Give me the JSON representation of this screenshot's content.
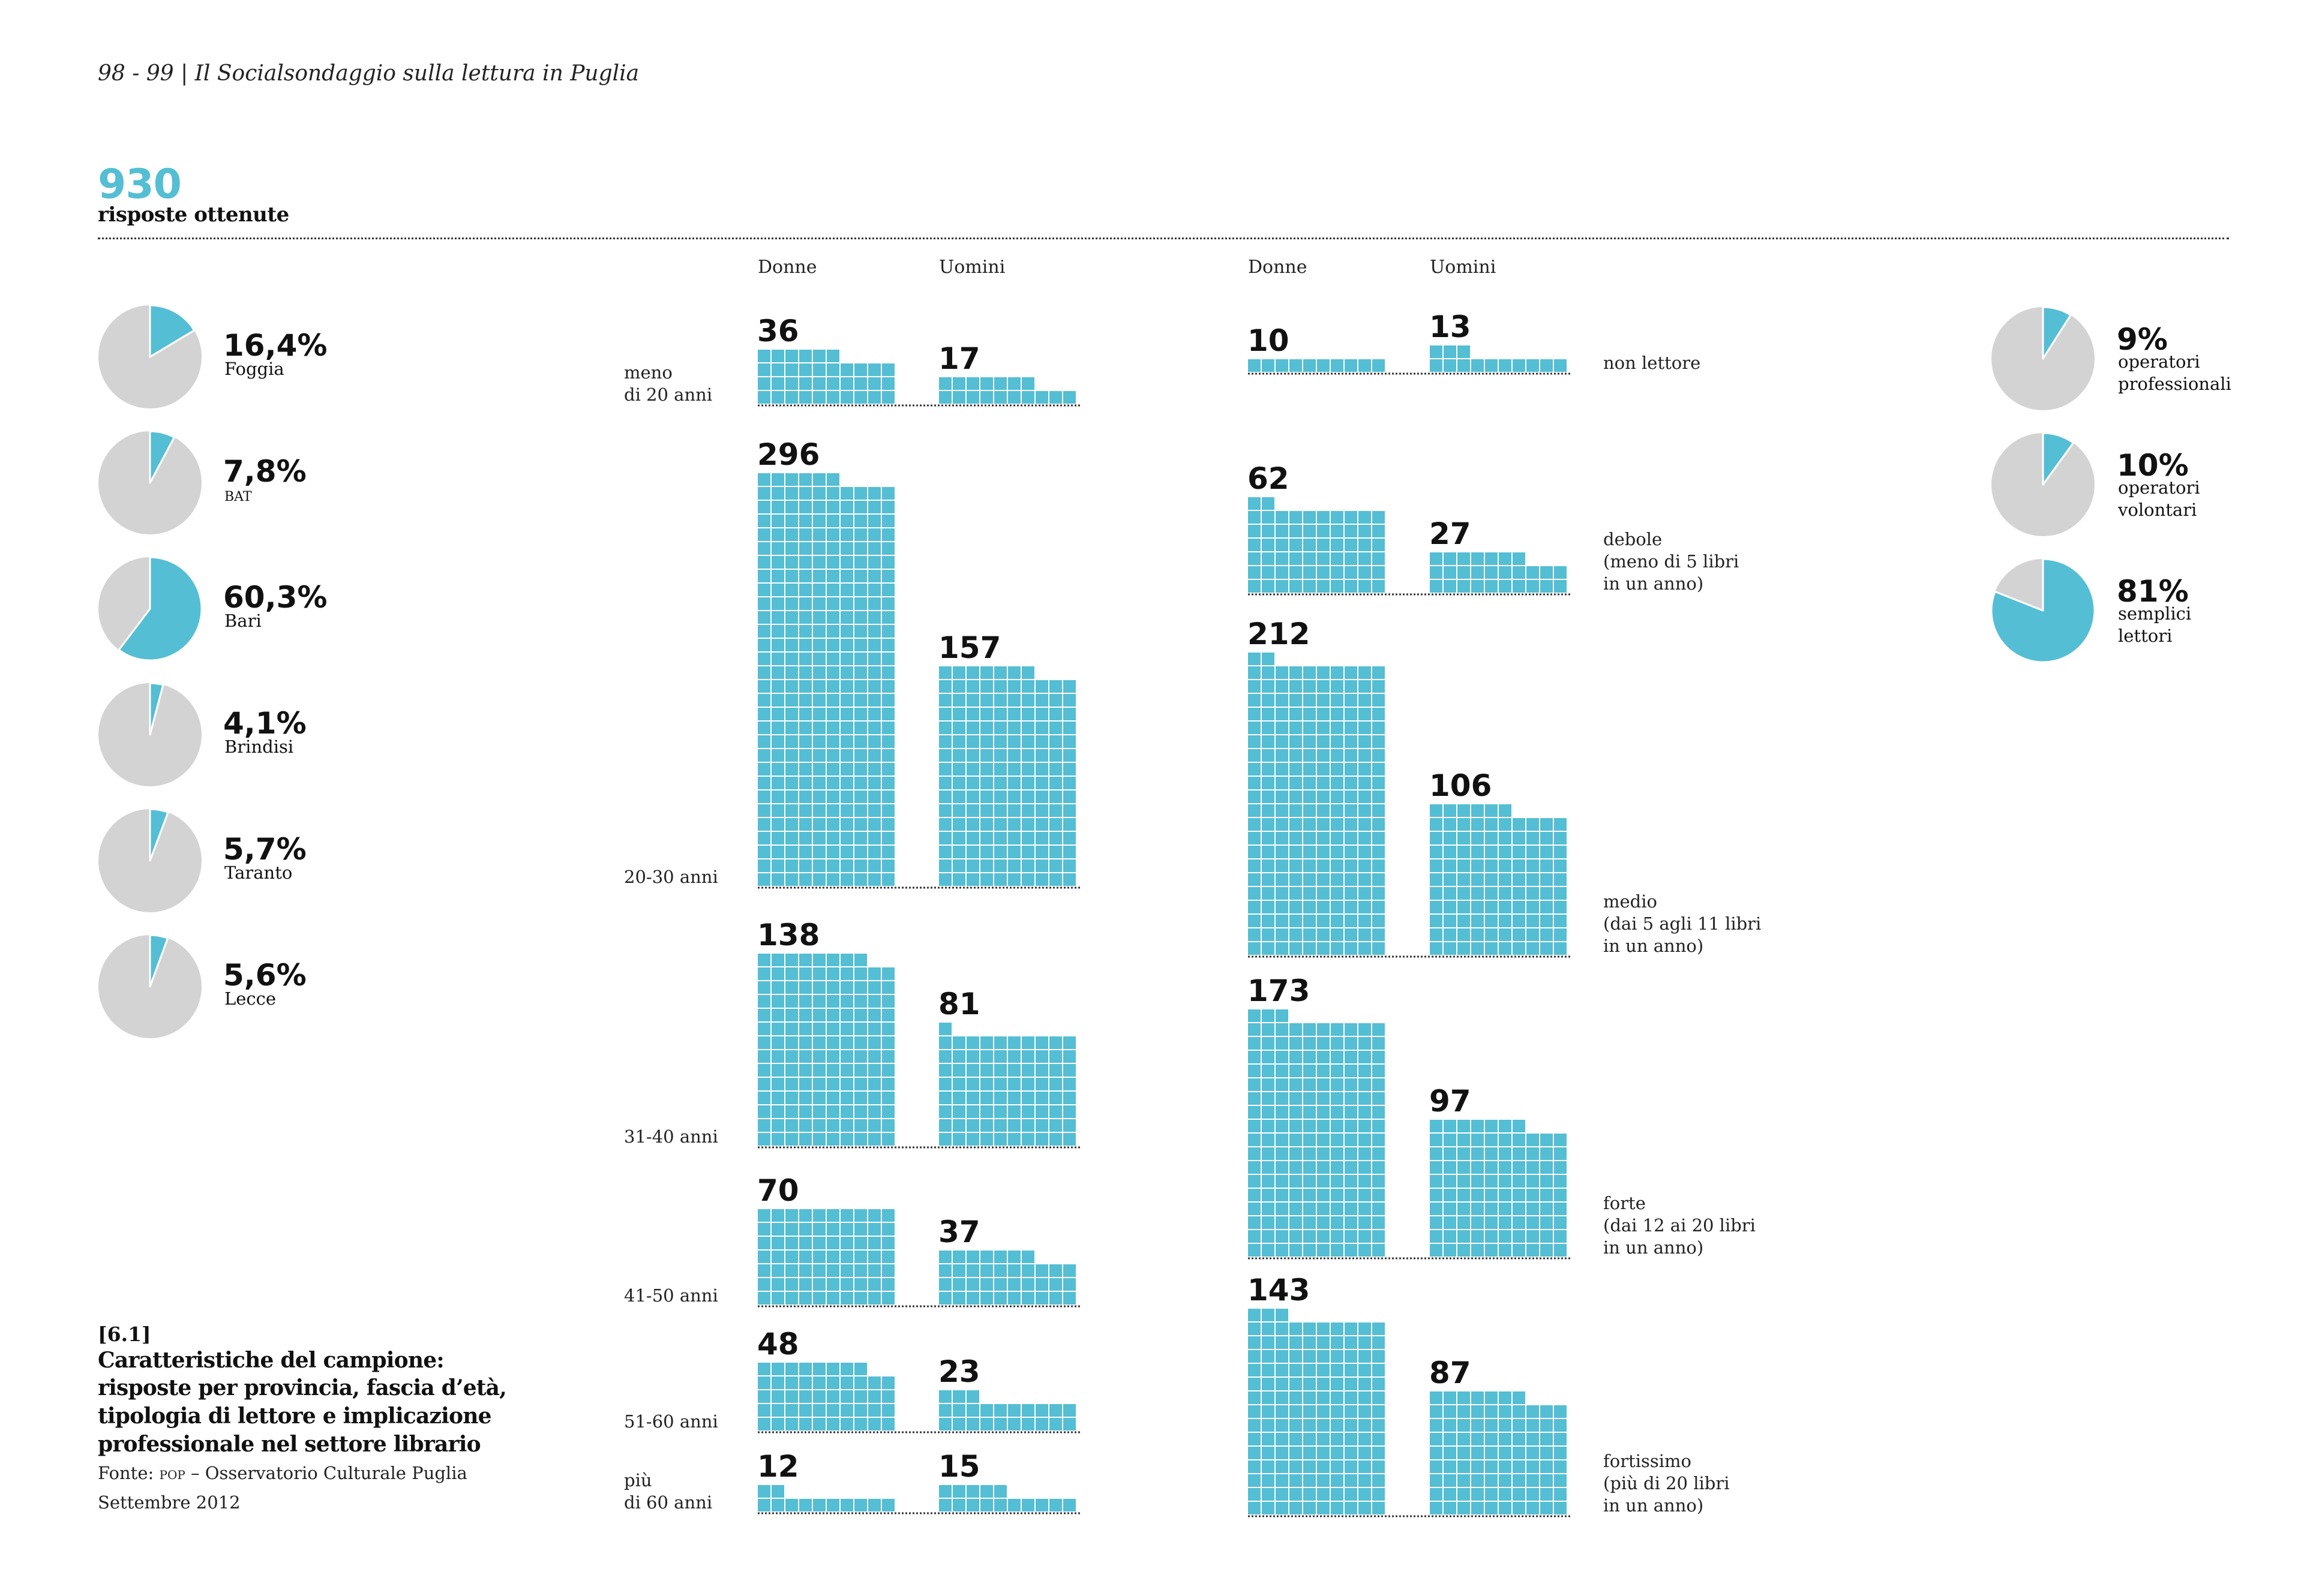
{
  "header": {
    "page_title": "98 - 99 | Il Socialsondaggio sulla lettura in Puglia",
    "total_value": "930",
    "total_label": "risposte ottenute"
  },
  "colors": {
    "accent": "#54BED4",
    "pie_rest": "#D3D3D3",
    "text": "#111111"
  },
  "columns": {
    "age_women": "Donne",
    "age_men": "Uomini",
    "reader_women": "Donne",
    "reader_men": "Uomini"
  },
  "caption": {
    "id": "[6.1]",
    "title_lines": [
      "Caratteristiche del campione:",
      "risposte per provincia, fascia d’età,",
      "tipologia di lettore e implicazione",
      "professionale nel settore librario"
    ],
    "source_prefix": "Fonte: ",
    "source_acronym": "POP",
    "source_rest": " – Osservatorio Culturale Puglia",
    "date": "Settembre 2012"
  },
  "chart_data": [
    {
      "type": "pie",
      "title": "Risposte per provincia",
      "unit": "%",
      "slices": [
        {
          "label": "Foggia",
          "value": 16.4,
          "display": "16,4%"
        },
        {
          "label": "BAT",
          "value": 7.8,
          "display": "7,8%"
        },
        {
          "label": "Bari",
          "value": 60.3,
          "display": "60,3%"
        },
        {
          "label": "Brindisi",
          "value": 4.1,
          "display": "4,1%"
        },
        {
          "label": "Taranto",
          "value": 5.7,
          "display": "5,7%"
        },
        {
          "label": "Lecce",
          "value": 5.6,
          "display": "5,6%"
        }
      ]
    },
    {
      "type": "bar",
      "subtype": "waffle",
      "title": "Risposte per fascia d'età",
      "squares_per_row": 10,
      "unit_per_square": 1,
      "categories": [
        "meno di 20 anni",
        "20-30 anni",
        "31-40 anni",
        "41-50 anni",
        "51-60 anni",
        "più di 60 anni"
      ],
      "category_label_lines": [
        [
          "meno",
          "di 20 anni"
        ],
        [
          "20-30 anni"
        ],
        [
          "31-40 anni"
        ],
        [
          "41-50 anni"
        ],
        [
          "51-60 anni"
        ],
        [
          "più",
          "di 60 anni"
        ]
      ],
      "series": [
        {
          "name": "Donne",
          "values": [
            36,
            296,
            138,
            70,
            48,
            12
          ]
        },
        {
          "name": "Uomini",
          "values": [
            17,
            157,
            81,
            37,
            23,
            15
          ]
        }
      ]
    },
    {
      "type": "bar",
      "subtype": "waffle",
      "title": "Tipologia di lettore",
      "squares_per_row": 10,
      "unit_per_square": 1,
      "categories": [
        "non lettore",
        "debole",
        "medio",
        "forte",
        "fortissimo"
      ],
      "category_label_lines": [
        [
          "non lettore"
        ],
        [
          "debole",
          "(meno di 5 libri",
          "in un anno)"
        ],
        [
          "medio",
          "(dai 5 agli 11 libri",
          "in un anno)"
        ],
        [
          "forte",
          "(dai 12 ai 20 libri",
          "in un anno)"
        ],
        [
          "fortissimo",
          "(più di 20 libri",
          "in un anno)"
        ]
      ],
      "series": [
        {
          "name": "Donne",
          "values": [
            10,
            62,
            212,
            173,
            143
          ]
        },
        {
          "name": "Uomini",
          "values": [
            13,
            27,
            106,
            97,
            87
          ]
        }
      ]
    },
    {
      "type": "pie",
      "title": "Implicazione professionale nel settore librario",
      "unit": "%",
      "slices": [
        {
          "label": "operatori professionali",
          "label_lines": [
            "operatori",
            "professionali"
          ],
          "value": 9,
          "display": "9%"
        },
        {
          "label": "operatori volontari",
          "label_lines": [
            "operatori",
            "volontari"
          ],
          "value": 10,
          "display": "10%"
        },
        {
          "label": "semplici lettori",
          "label_lines": [
            "semplici",
            "lettori"
          ],
          "value": 81,
          "display": "81%"
        }
      ]
    }
  ]
}
